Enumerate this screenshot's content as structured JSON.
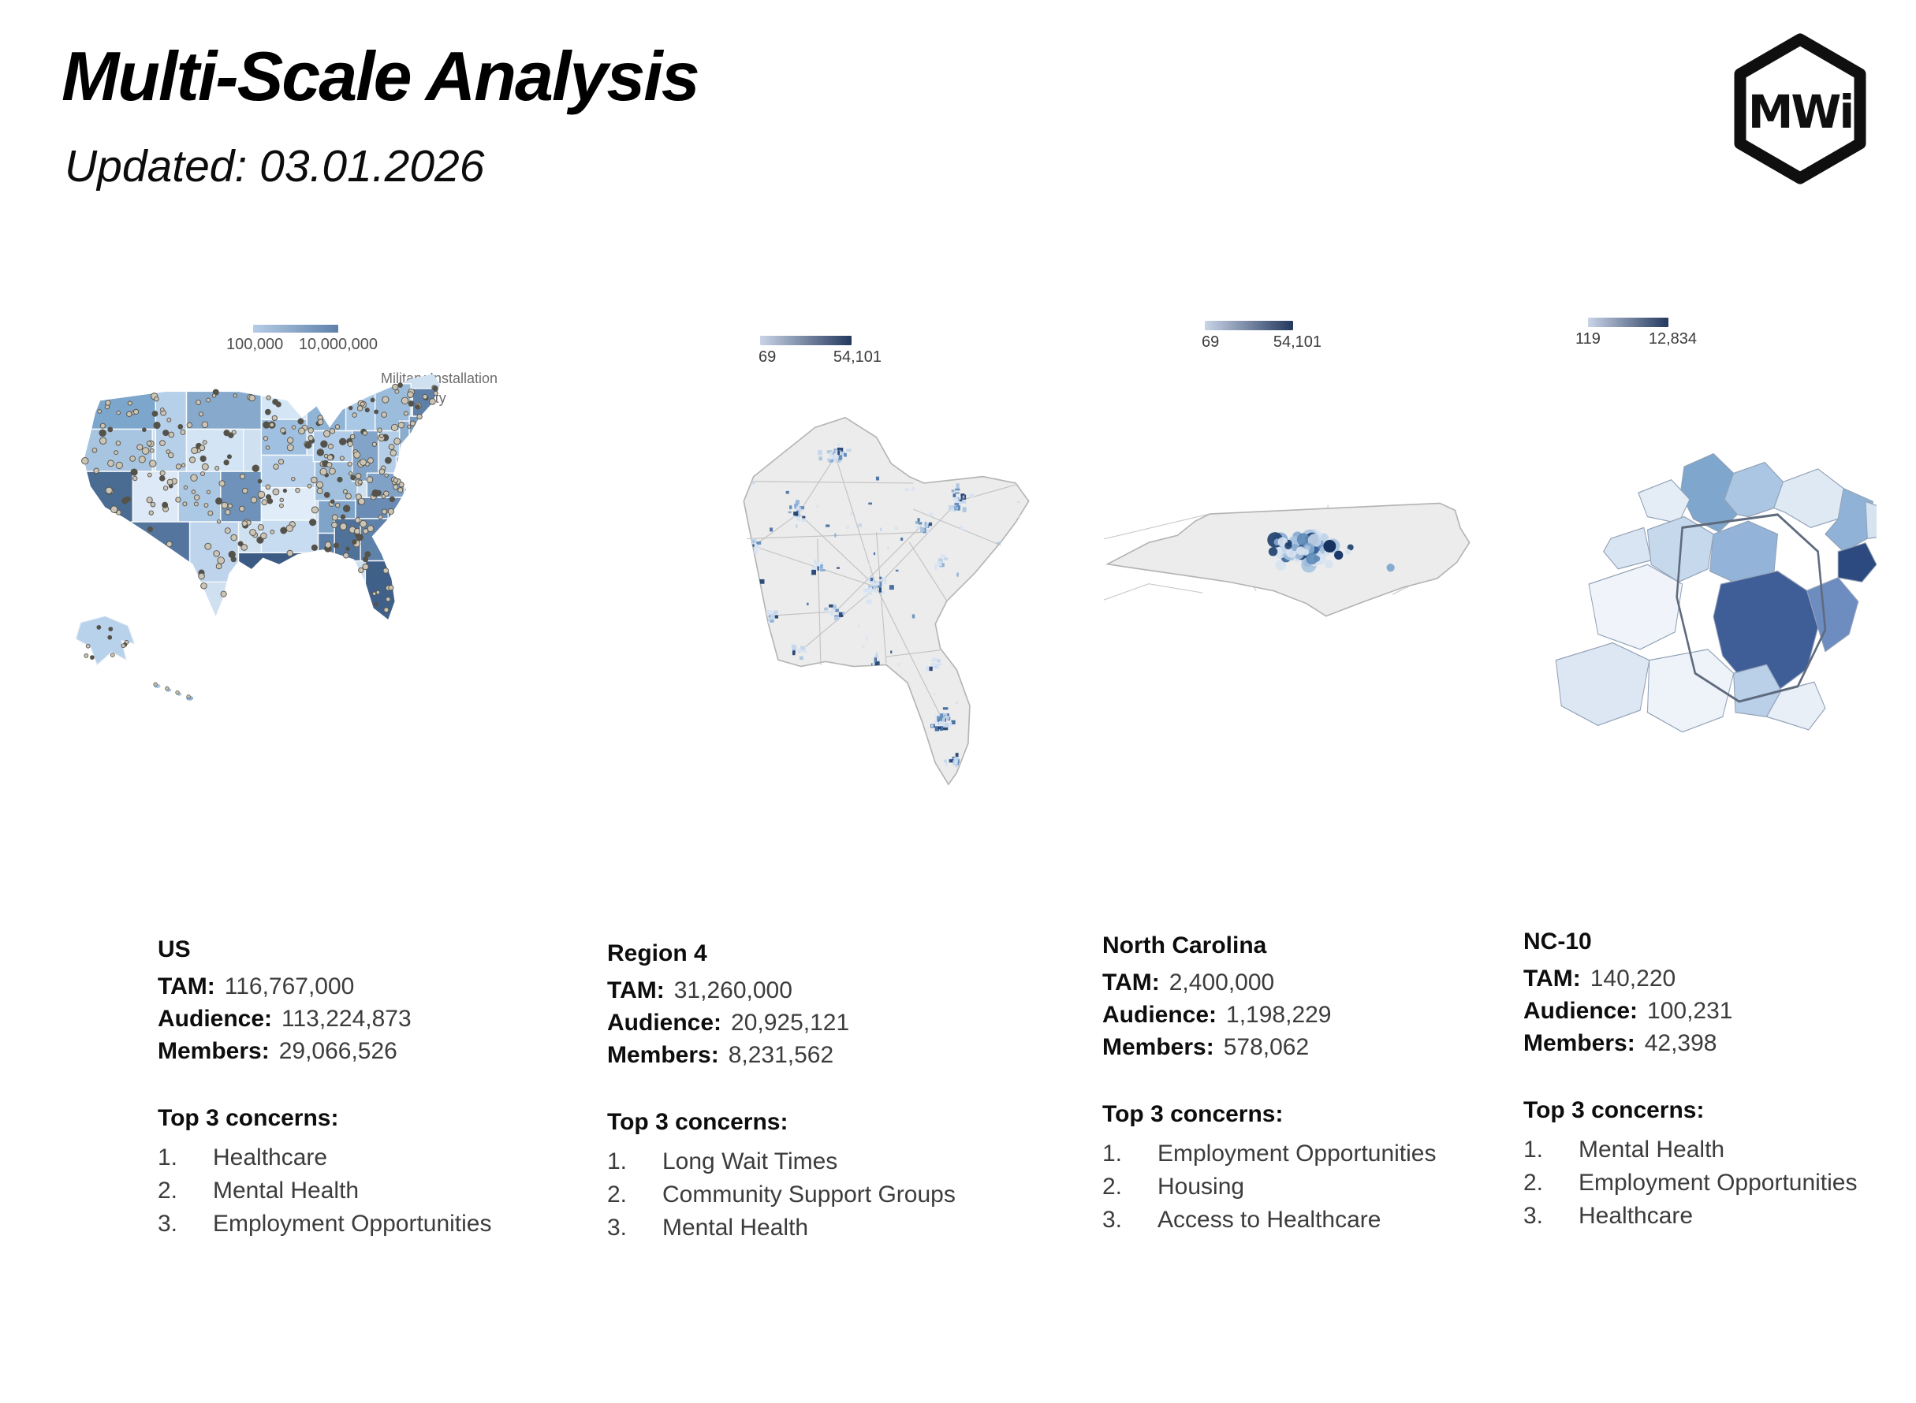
{
  "header": {
    "title": "Multi-Scale Analysis",
    "subtitle": "Updated: 03.01.2026",
    "logo_text": "MWi"
  },
  "panels": [
    {
      "id": "us",
      "name": "US",
      "legend": {
        "min": "100,000",
        "max": "10,000,000"
      },
      "annotations": {
        "line1": "Military Installation",
        "line2": "VA Facility"
      },
      "stats": [
        {
          "label": "TAM:",
          "value": "116,767,000"
        },
        {
          "label": "Audience:",
          "value": "113,224,873"
        },
        {
          "label": "Members:",
          "value": "29,066,526"
        }
      ],
      "concerns_title": "Top 3 concerns:",
      "concerns": [
        {
          "num": "1.",
          "text": "Healthcare"
        },
        {
          "num": "2.",
          "text": "Mental Health"
        },
        {
          "num": "3.",
          "text": "Employment Opportunities"
        }
      ]
    },
    {
      "id": "region4",
      "name": "Region 4",
      "legend": {
        "min": "69",
        "max": "54,101"
      },
      "stats": [
        {
          "label": "TAM:",
          "value": "31,260,000"
        },
        {
          "label": "Audience:",
          "value": "20,925,121"
        },
        {
          "label": "Members:",
          "value": "8,231,562"
        }
      ],
      "concerns_title": "Top 3 concerns:",
      "concerns": [
        {
          "num": "1.",
          "text": "Long Wait Times"
        },
        {
          "num": "2.",
          "text": "Community Support Groups"
        },
        {
          "num": "3.",
          "text": "Mental Health"
        }
      ]
    },
    {
      "id": "north-carolina",
      "name": "North Carolina",
      "legend": {
        "min": "69",
        "max": "54,101"
      },
      "stats": [
        {
          "label": "TAM:",
          "value": "2,400,000"
        },
        {
          "label": "Audience:",
          "value": "1,198,229"
        },
        {
          "label": "Members:",
          "value": "578,062"
        }
      ],
      "concerns_title": "Top 3 concerns:",
      "concerns": [
        {
          "num": "1.",
          "text": "Employment Opportunities"
        },
        {
          "num": "2.",
          "text": "Housing"
        },
        {
          "num": "3.",
          "text": "Access to Healthcare"
        }
      ]
    },
    {
      "id": "nc-10",
      "name": "NC-10",
      "legend": {
        "min": "119",
        "max": "12,834"
      },
      "stats": [
        {
          "label": "TAM:",
          "value": "140,220"
        },
        {
          "label": "Audience:",
          "value": "100,231"
        },
        {
          "label": "Members:",
          "value": "42,398"
        }
      ],
      "concerns_title": "Top 3 concerns:",
      "concerns": [
        {
          "num": "1.",
          "text": "Mental Health"
        },
        {
          "num": "2.",
          "text": "Employment Opportunities"
        },
        {
          "num": "3.",
          "text": "Healthcare"
        }
      ]
    }
  ],
  "map_colors": {
    "choropleth_light": "#dce9f6",
    "choropleth_dark": "#3c5c85",
    "tract_light": "#d7e3f2",
    "tract_dark": "#1e3e6e",
    "state_fill_gray": "#ececec",
    "legend_light": "#c9d4e6",
    "legend_dark": "#24395f"
  }
}
